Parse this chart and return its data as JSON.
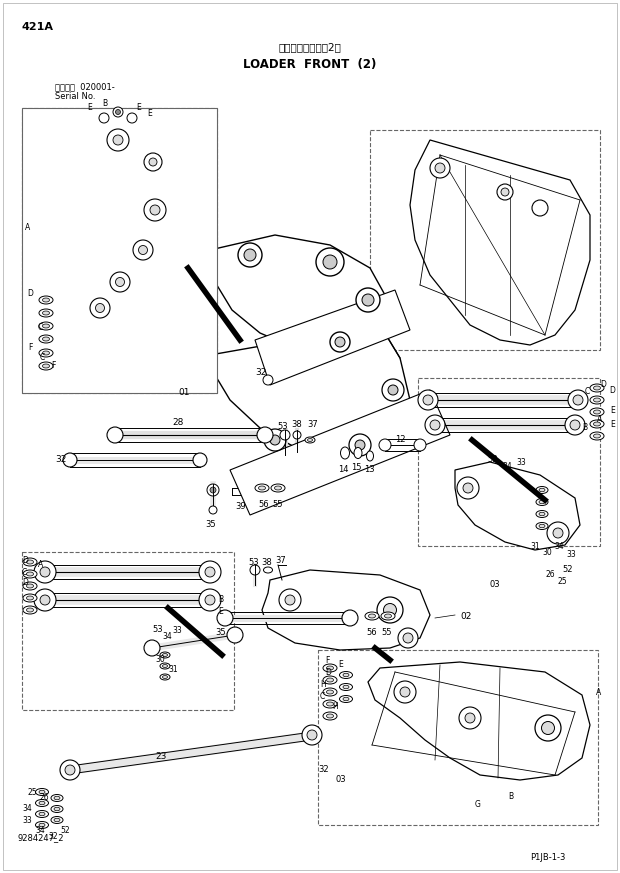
{
  "title_jp": "ローダフロント（2）",
  "title_en": "LOADER  FRONT  (2)",
  "page_id": "421A",
  "serial_info_jp": "適用号機  020001-",
  "serial_info_en": "Serial No.",
  "drawing_no": "9284247_2",
  "page_ref": "P1JB-1-3",
  "bg_color": "#ffffff",
  "line_color": "#000000",
  "dashed_box_color": "#666666"
}
